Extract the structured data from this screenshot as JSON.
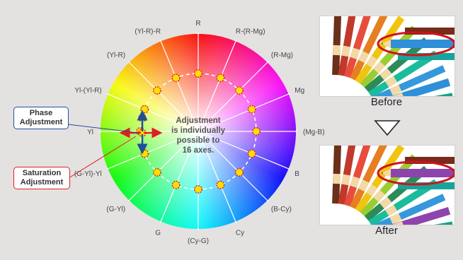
{
  "wheel": {
    "axis_labels": [
      "R",
      "R-(R-Mg)",
      "(R-Mg)",
      "Mg",
      "(Mg-B)",
      "B",
      "(B-Cy)",
      "Cy",
      "(Cy-G)",
      "G",
      "(G-Yl)",
      "(G-Yl)-Yl",
      "Yl",
      "Yl-(Yl-R)",
      "(Yl-R)",
      "(Yl-R)-R"
    ],
    "center_text": [
      "Adjustment",
      "is individually",
      "possible to",
      "16 axes."
    ]
  },
  "callouts": {
    "phase": [
      "Phase",
      "Adjustment"
    ],
    "saturation": [
      "Saturation",
      "Adjustment"
    ]
  },
  "colors": {
    "background": "#e4e1e1",
    "phase_outline": "#1f4e9a",
    "saturation_outline": "#e02020",
    "control_point": "#ffe000",
    "point_border": "#e02020",
    "highlight_ring": "#d0131a"
  },
  "photos": {
    "before_caption": "Before",
    "after_caption": "After",
    "before_highlight_color": "#2f8fd8",
    "after_highlight_color": "#8e44ad",
    "arrow_icon": "down-triangle-icon"
  }
}
